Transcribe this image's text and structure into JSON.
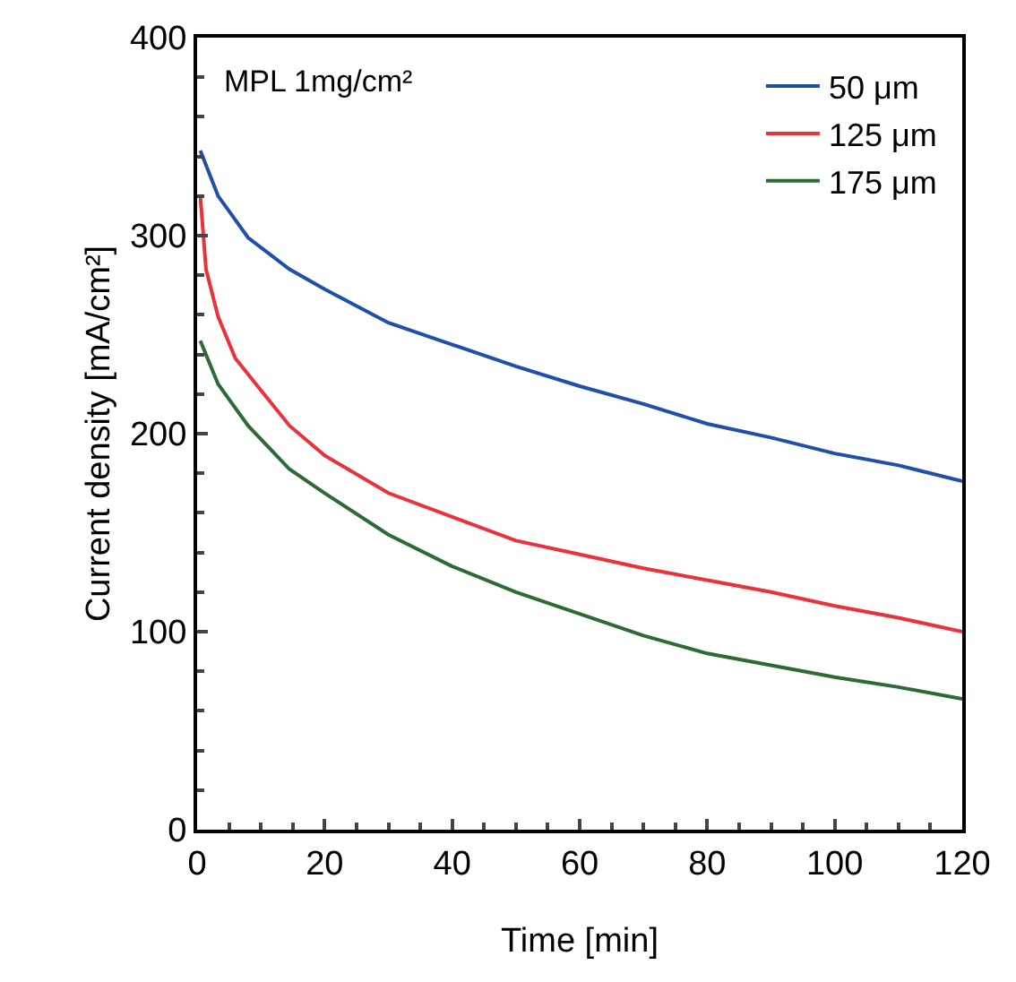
{
  "chart_data": {
    "type": "line",
    "xlabel": "Time [min]",
    "ylabel": "Current density [mA/cm²]",
    "annotations": [
      "MPL 1mg/cm²"
    ],
    "x": [
      0.5,
      3.3,
      8,
      14.5,
      20,
      30,
      40,
      50,
      60,
      70,
      80,
      90,
      100,
      110,
      120
    ],
    "series": [
      {
        "name": "50 μm",
        "color": "#1f4fa8",
        "values": [
          343,
          320,
          299,
          283,
          273,
          256,
          245,
          234,
          224,
          215,
          205,
          198,
          190,
          184,
          176
        ]
      },
      {
        "name": "125 μm",
        "color": "#e8323c",
        "x": [
          0.5,
          1.4,
          3.3,
          6,
          10,
          14.5,
          20,
          30,
          40,
          50,
          60,
          70,
          80,
          90,
          100,
          110,
          120
        ],
        "values": [
          320,
          283,
          259,
          238,
          222,
          204,
          189,
          170,
          158,
          146,
          139,
          132,
          126,
          120,
          113,
          107,
          100
        ]
      },
      {
        "name": "175 μm",
        "color": "#2d6a35",
        "values": [
          247,
          225,
          204,
          182,
          170,
          149,
          133,
          120,
          109,
          98,
          89,
          83,
          77,
          72,
          66
        ]
      }
    ],
    "xlim": [
      0,
      120
    ],
    "xticks": [
      0,
      20,
      40,
      60,
      80,
      100,
      120
    ],
    "ylim": [
      0,
      400
    ],
    "yticks": [
      0,
      100,
      200,
      300,
      400
    ],
    "grid": false,
    "legend": "top right",
    "marker": "none",
    "line_style": "solid"
  }
}
